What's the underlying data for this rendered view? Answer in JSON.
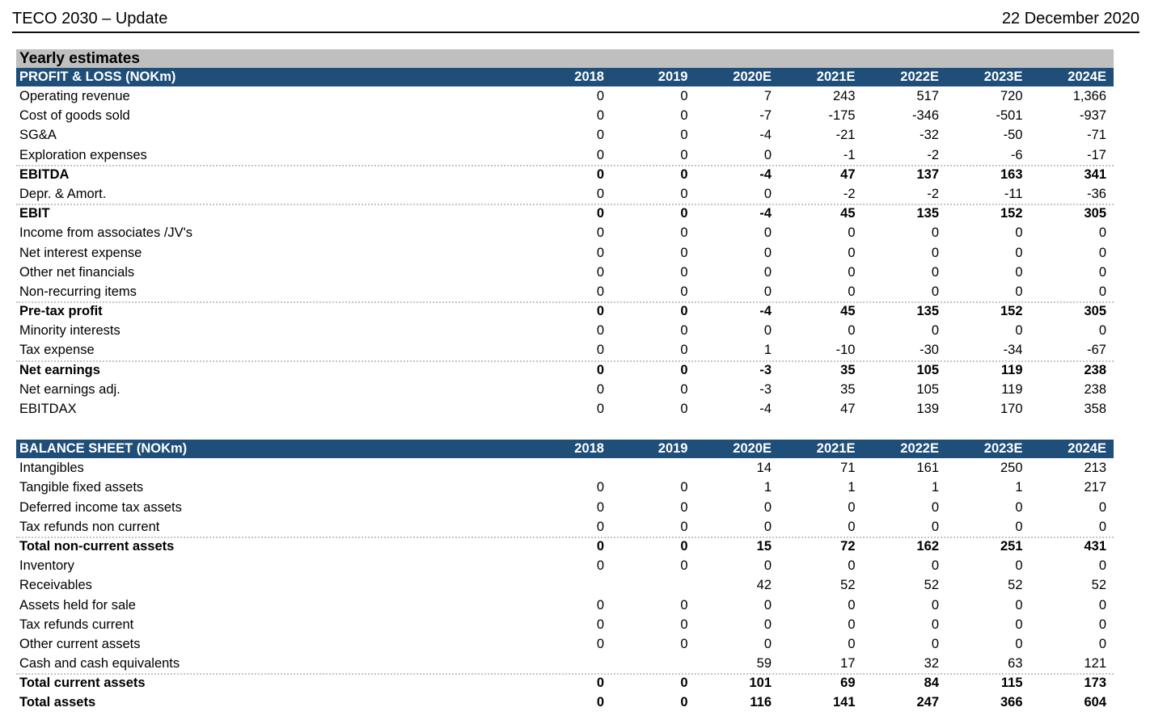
{
  "page_header": {
    "title": "TECO 2030 – Update",
    "date": "22 December 2020"
  },
  "section_title": "Yearly estimates",
  "colors": {
    "header_blue": "#1F4E79",
    "section_gray": "#BFBFBF"
  },
  "years": [
    "2018",
    "2019",
    "2020E",
    "2021E",
    "2022E",
    "2023E",
    "2024E"
  ],
  "tables": [
    {
      "title": "PROFIT & LOSS (NOKm)",
      "rows": [
        {
          "label": "Operating revenue",
          "values": [
            "0",
            "0",
            "7",
            "243",
            "517",
            "720",
            "1,366"
          ],
          "bold": false,
          "separator": false
        },
        {
          "label": "Cost of goods sold",
          "values": [
            "0",
            "0",
            "-7",
            "-175",
            "-346",
            "-501",
            "-937"
          ],
          "bold": false,
          "separator": false
        },
        {
          "label": "SG&A",
          "values": [
            "0",
            "0",
            "-4",
            "-21",
            "-32",
            "-50",
            "-71"
          ],
          "bold": false,
          "separator": false
        },
        {
          "label": "Exploration expenses",
          "values": [
            "0",
            "0",
            "0",
            "-1",
            "-2",
            "-6",
            "-17"
          ],
          "bold": false,
          "separator": false
        },
        {
          "label": "EBITDA",
          "values": [
            "0",
            "0",
            "-4",
            "47",
            "137",
            "163",
            "341"
          ],
          "bold": true,
          "separator": true
        },
        {
          "label": "Depr. & Amort.",
          "values": [
            "0",
            "0",
            "0",
            "-2",
            "-2",
            "-11",
            "-36"
          ],
          "bold": false,
          "separator": false
        },
        {
          "label": "EBIT",
          "values": [
            "0",
            "0",
            "-4",
            "45",
            "135",
            "152",
            "305"
          ],
          "bold": true,
          "separator": true
        },
        {
          "label": "Income from associates /JV's",
          "values": [
            "0",
            "0",
            "0",
            "0",
            "0",
            "0",
            "0"
          ],
          "bold": false,
          "separator": false
        },
        {
          "label": "Net interest expense",
          "values": [
            "0",
            "0",
            "0",
            "0",
            "0",
            "0",
            "0"
          ],
          "bold": false,
          "separator": false
        },
        {
          "label": "Other net financials",
          "values": [
            "0",
            "0",
            "0",
            "0",
            "0",
            "0",
            "0"
          ],
          "bold": false,
          "separator": false
        },
        {
          "label": "Non-recurring items",
          "values": [
            "0",
            "0",
            "0",
            "0",
            "0",
            "0",
            "0"
          ],
          "bold": false,
          "separator": false
        },
        {
          "label": "Pre-tax profit",
          "values": [
            "0",
            "0",
            "-4",
            "45",
            "135",
            "152",
            "305"
          ],
          "bold": true,
          "separator": true
        },
        {
          "label": "Minority interests",
          "values": [
            "0",
            "0",
            "0",
            "0",
            "0",
            "0",
            "0"
          ],
          "bold": false,
          "separator": false
        },
        {
          "label": "Tax expense",
          "values": [
            "0",
            "0",
            "1",
            "-10",
            "-30",
            "-34",
            "-67"
          ],
          "bold": false,
          "separator": false
        },
        {
          "label": "Net earnings",
          "values": [
            "0",
            "0",
            "-3",
            "35",
            "105",
            "119",
            "238"
          ],
          "bold": true,
          "separator": true
        },
        {
          "label": "Net earnings adj.",
          "values": [
            "0",
            "0",
            "-3",
            "35",
            "105",
            "119",
            "238"
          ],
          "bold": false,
          "separator": false
        },
        {
          "label": "EBITDAX",
          "values": [
            "0",
            "0",
            "-4",
            "47",
            "139",
            "170",
            "358"
          ],
          "bold": false,
          "separator": false
        }
      ]
    },
    {
      "title": "BALANCE SHEET (NOKm)",
      "rows": [
        {
          "label": "Intangibles",
          "values": [
            "",
            "",
            "14",
            "71",
            "161",
            "250",
            "213"
          ],
          "bold": false,
          "separator": false
        },
        {
          "label": "Tangible fixed assets",
          "values": [
            "0",
            "0",
            "1",
            "1",
            "1",
            "1",
            "217"
          ],
          "bold": false,
          "separator": false
        },
        {
          "label": "Deferred income tax assets",
          "values": [
            "0",
            "0",
            "0",
            "0",
            "0",
            "0",
            "0"
          ],
          "bold": false,
          "separator": false
        },
        {
          "label": "Tax refunds non current",
          "values": [
            "0",
            "0",
            "0",
            "0",
            "0",
            "0",
            "0"
          ],
          "bold": false,
          "separator": false
        },
        {
          "label": "Total non-current assets",
          "values": [
            "0",
            "0",
            "15",
            "72",
            "162",
            "251",
            "431"
          ],
          "bold": true,
          "separator": true
        },
        {
          "label": "Inventory",
          "values": [
            "0",
            "0",
            "0",
            "0",
            "0",
            "0",
            "0"
          ],
          "bold": false,
          "separator": false
        },
        {
          "label": "Receivables",
          "values": [
            "",
            "",
            "42",
            "52",
            "52",
            "52",
            "52"
          ],
          "bold": false,
          "separator": false
        },
        {
          "label": "Assets held for sale",
          "values": [
            "0",
            "0",
            "0",
            "0",
            "0",
            "0",
            "0"
          ],
          "bold": false,
          "separator": false
        },
        {
          "label": "Tax refunds current",
          "values": [
            "0",
            "0",
            "0",
            "0",
            "0",
            "0",
            "0"
          ],
          "bold": false,
          "separator": false
        },
        {
          "label": "Other current assets",
          "values": [
            "0",
            "0",
            "0",
            "0",
            "0",
            "0",
            "0"
          ],
          "bold": false,
          "separator": false
        },
        {
          "label": "Cash and cash equivalents",
          "values": [
            "",
            "",
            "59",
            "17",
            "32",
            "63",
            "121"
          ],
          "bold": false,
          "separator": false
        },
        {
          "label": "Total current assets",
          "values": [
            "0",
            "0",
            "101",
            "69",
            "84",
            "115",
            "173"
          ],
          "bold": true,
          "separator": true
        },
        {
          "label": "Total assets",
          "values": [
            "0",
            "0",
            "116",
            "141",
            "247",
            "366",
            "604"
          ],
          "bold": true,
          "separator": false
        }
      ]
    }
  ]
}
